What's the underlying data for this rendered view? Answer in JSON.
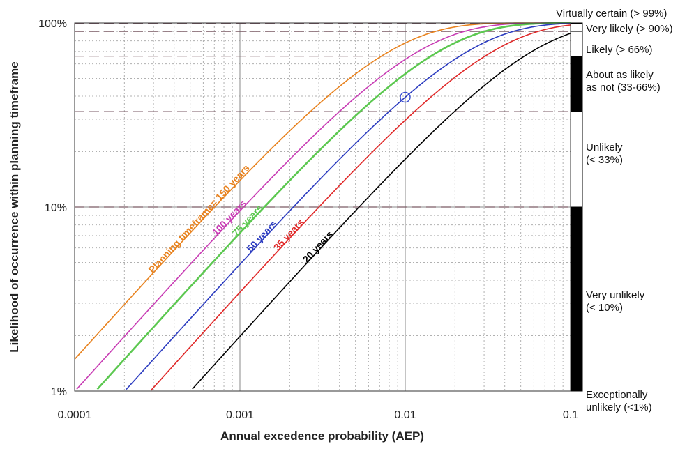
{
  "chart_data": {
    "type": "line",
    "xlabel": "Annual excedence probability (AEP)",
    "ylabel": "Likelihood of occurrence within planning timeframe",
    "x_scale": "log",
    "y_scale": "log",
    "xlim": [
      0.0001,
      0.1
    ],
    "ylim": [
      0.01,
      1.0
    ],
    "x_ticks": [
      {
        "value": 0.0001,
        "label": "0.0001"
      },
      {
        "value": 0.001,
        "label": "0.001"
      },
      {
        "value": 0.01,
        "label": "0.01"
      },
      {
        "value": 0.1,
        "label": "0.1"
      }
    ],
    "y_ticks": [
      {
        "value": 0.01,
        "label": "1%"
      },
      {
        "value": 0.1,
        "label": "10%"
      },
      {
        "value": 1.0,
        "label": "100%"
      }
    ],
    "grid": true,
    "formula": "likelihood = 1 - (1 - AEP)^years",
    "series": [
      {
        "label": "Planning timeframe= 150 years",
        "years": 150,
        "color": "#e8821e",
        "label_at_aep": 0.00028
      },
      {
        "label": "100 years",
        "years": 100,
        "color": "#c83cb4",
        "label_at_aep": 0.00068
      },
      {
        "label": "75 years",
        "years": 75,
        "color": "#5cc850",
        "label_at_aep": 0.0009
      },
      {
        "label": "50 years",
        "years": 50,
        "color": "#2c3cc0",
        "label_at_aep": 0.0011
      },
      {
        "label": "35 years",
        "years": 35,
        "color": "#e02828",
        "label_at_aep": 0.0016
      },
      {
        "label": "20 years",
        "years": 20,
        "color": "#000000",
        "label_at_aep": 0.0024
      }
    ],
    "x_sample": [
      0.0001,
      0.00012,
      0.00015,
      0.0002,
      0.00025,
      0.0003,
      0.0004,
      0.0005,
      0.0006,
      0.0008,
      0.001,
      0.0012,
      0.0015,
      0.002,
      0.0025,
      0.003,
      0.004,
      0.005,
      0.006,
      0.008,
      0.01,
      0.012,
      0.015,
      0.02,
      0.025,
      0.03,
      0.04,
      0.05,
      0.06,
      0.08,
      0.1
    ],
    "reference_lines": [
      0.99,
      0.9,
      0.66,
      0.33,
      0.1
    ],
    "highlight_point": {
      "x": 0.01,
      "y": 0.395
    },
    "likelihood_bands": [
      {
        "label": "Virtually certain (> 99%)",
        "lo": 0.99,
        "hi": 1.0,
        "color": "#000000"
      },
      {
        "label": "Very likely (> 90%)",
        "lo": 0.9,
        "hi": 0.99,
        "color": "#ffffff"
      },
      {
        "label": "Likely (> 66%)",
        "lo": 0.66,
        "hi": 0.9,
        "color": "#ffffff"
      },
      {
        "label": "About as likely as not (33-66%)",
        "lo": 0.33,
        "hi": 0.66,
        "color": "#000000"
      },
      {
        "label": "Unlikely (< 33%)",
        "lo": 0.1,
        "hi": 0.33,
        "color": "#ffffff"
      },
      {
        "label": "Very unlikely (< 10%)",
        "lo": 0.01,
        "hi": 0.1,
        "color": "#000000"
      }
    ],
    "exceptional_label": "Exceptionally unlikely (<1%)"
  }
}
